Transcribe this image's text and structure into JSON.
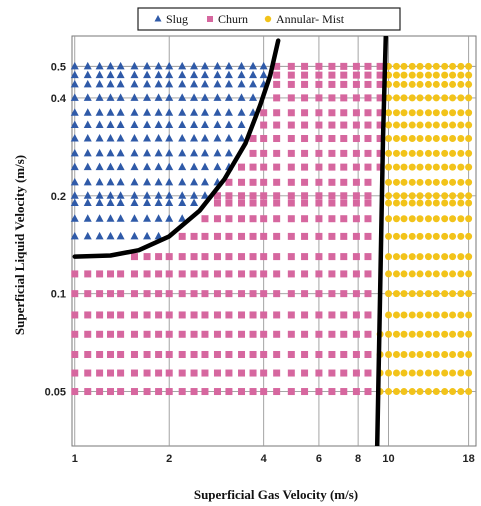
{
  "chart_data": {
    "type": "scatter",
    "title": "",
    "xlabel": "Superficial Gas Velocity (m/s)",
    "ylabel": "Superficial Liquid Velocity (m/s)",
    "x_scale": "log",
    "y_scale": "log",
    "xlim": [
      0.98,
      19
    ],
    "ylim": [
      0.034,
      0.62
    ],
    "x_ticks": [
      1,
      2,
      4,
      6,
      8,
      10,
      18
    ],
    "x_tick_labels": [
      "1",
      "2",
      "4",
      "6",
      "8",
      "10",
      "18"
    ],
    "y_ticks": [
      0.05,
      0.1,
      0.2,
      0.4,
      0.5
    ],
    "y_tick_labels": [
      "0.05",
      "0.1",
      "0.2",
      "0.4",
      "0.5"
    ],
    "grid": true,
    "legend_position": "top",
    "x_grid": [
      1.0,
      1.1,
      1.2,
      1.3,
      1.4,
      1.55,
      1.7,
      1.85,
      2.0,
      2.2,
      2.4,
      2.6,
      2.85,
      3.1,
      3.4,
      3.7,
      4.0,
      4.4,
      4.9,
      5.4,
      6.0,
      6.6,
      7.2,
      7.9,
      8.6,
      9.4,
      10.0,
      10.6,
      11.2,
      11.9,
      12.6,
      13.4,
      14.2,
      15.1,
      16.0,
      17.0,
      18.0
    ],
    "y_grid": [
      0.05,
      0.057,
      0.065,
      0.075,
      0.086,
      0.1,
      0.115,
      0.13,
      0.15,
      0.17,
      0.19,
      0.2,
      0.22,
      0.245,
      0.27,
      0.3,
      0.33,
      0.36,
      0.4,
      0.44,
      0.47,
      0.5
    ],
    "series": [
      {
        "name": "Slug",
        "marker": "triangle",
        "color": "#2f5aa8"
      },
      {
        "name": "Churn",
        "marker": "square",
        "color": "#d6679f"
      },
      {
        "name": "Annular- Mist",
        "marker": "circle",
        "color": "#f2c31a"
      }
    ],
    "boundaries": [
      {
        "separates": [
          "Slug",
          "Churn"
        ],
        "points": [
          [
            1.0,
            0.13
          ],
          [
            1.3,
            0.131
          ],
          [
            1.6,
            0.136
          ],
          [
            2.0,
            0.15
          ],
          [
            2.5,
            0.18
          ],
          [
            3.0,
            0.225
          ],
          [
            3.5,
            0.29
          ],
          [
            3.9,
            0.38
          ],
          [
            4.2,
            0.47
          ],
          [
            4.45,
            0.6
          ]
        ]
      },
      {
        "separates": [
          "Churn",
          "Annular- Mist"
        ],
        "points": [
          [
            9.2,
            0.034
          ],
          [
            9.4,
            0.1
          ],
          [
            9.6,
            0.3
          ],
          [
            9.8,
            0.62
          ]
        ]
      }
    ],
    "boundary_color": "#000000"
  }
}
